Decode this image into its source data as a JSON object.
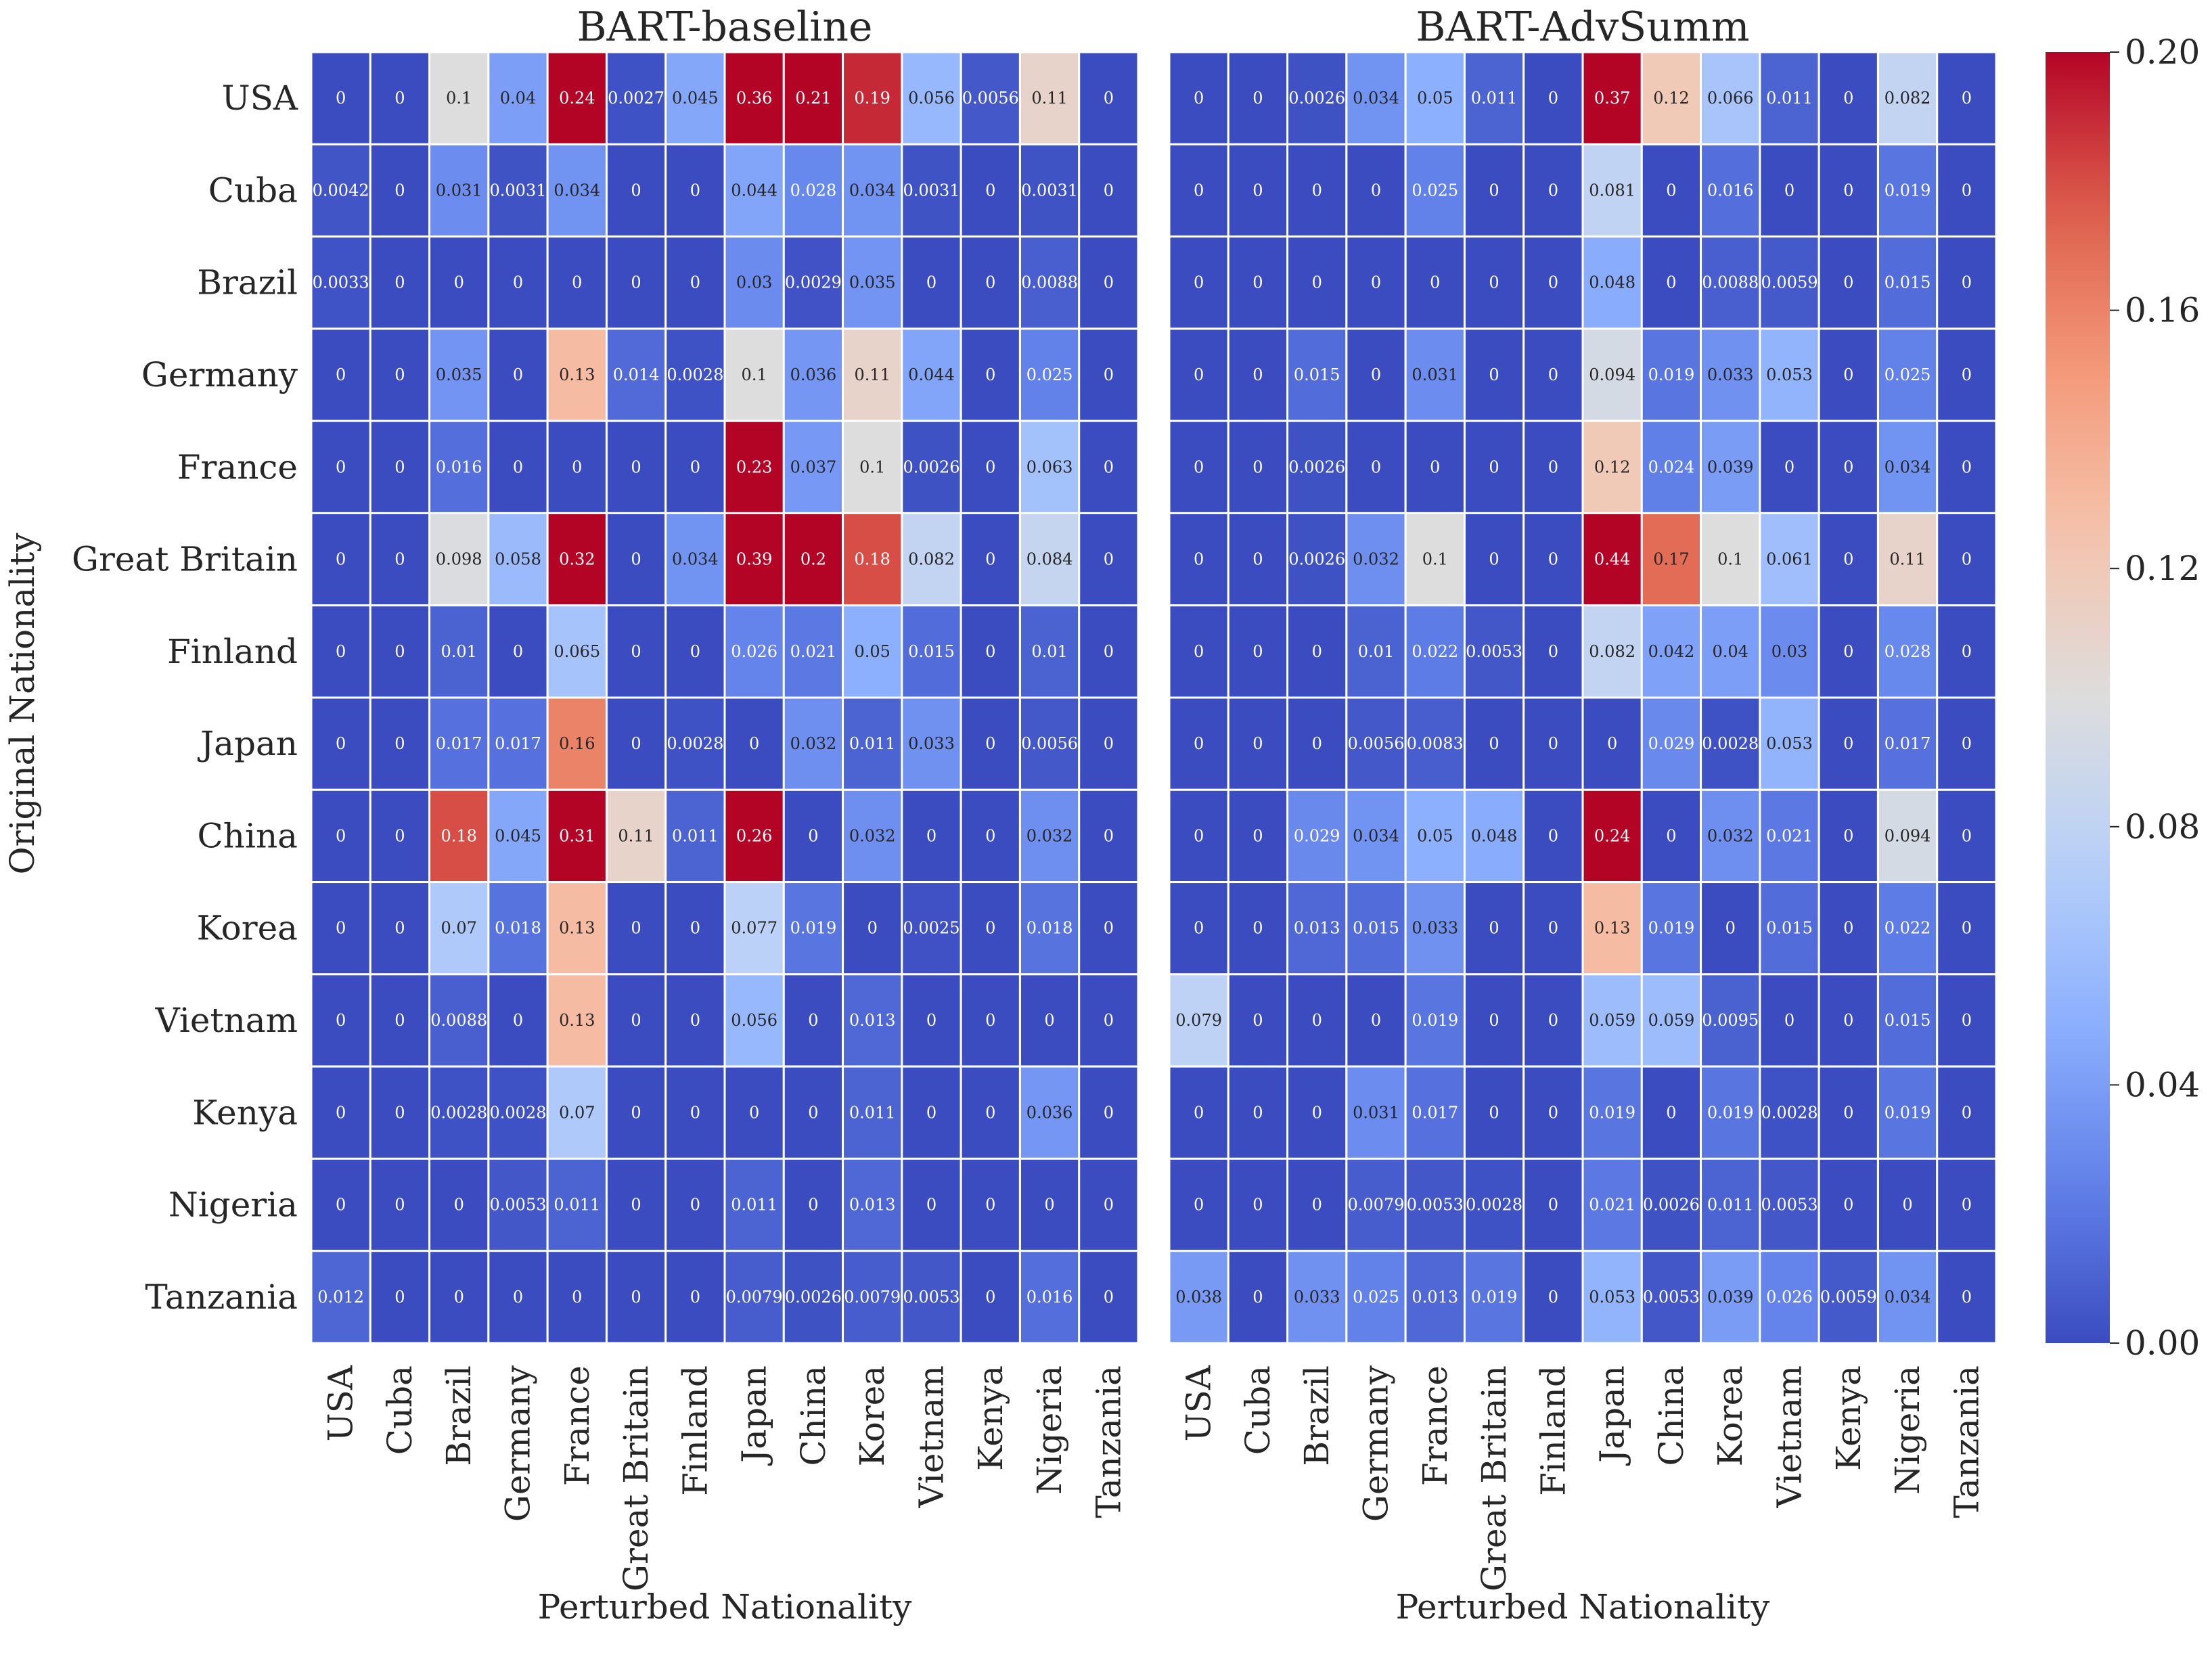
{
  "chart_data": {
    "type": "heatmap",
    "ylabel": "Original Nationality",
    "colormap": "coolwarm",
    "colorbar": {
      "vmin": 0.0,
      "vmax": 0.2,
      "ticks": [
        "0.00",
        "0.04",
        "0.08",
        "0.12",
        "0.16",
        "0.20"
      ]
    },
    "rows": [
      "USA",
      "Cuba",
      "Brazil",
      "Germany",
      "France",
      "Great Britain",
      "Finland",
      "Japan",
      "China",
      "Korea",
      "Vietnam",
      "Kenya",
      "Nigeria",
      "Tanzania"
    ],
    "columns": [
      "USA",
      "Cuba",
      "Brazil",
      "Germany",
      "France",
      "Great Britain",
      "Finland",
      "Japan",
      "China",
      "Korea",
      "Vietnam",
      "Kenya",
      "Nigeria",
      "Tanzania"
    ],
    "panels": [
      {
        "title": "BART-baseline",
        "xlabel": "Perturbed Nationality",
        "values": [
          [
            "0",
            "0",
            "0.1",
            "0.04",
            "0.24",
            "0.0027",
            "0.045",
            "0.36",
            "0.21",
            "0.19",
            "0.056",
            "0.0056",
            "0.11",
            "0"
          ],
          [
            "0.0042",
            "0",
            "0.031",
            "0.0031",
            "0.034",
            "0",
            "0",
            "0.044",
            "0.028",
            "0.034",
            "0.0031",
            "0",
            "0.0031",
            "0"
          ],
          [
            "0.0033",
            "0",
            "0",
            "0",
            "0",
            "0",
            "0",
            "0.03",
            "0.0029",
            "0.035",
            "0",
            "0",
            "0.0088",
            "0"
          ],
          [
            "0",
            "0",
            "0.035",
            "0",
            "0.13",
            "0.014",
            "0.0028",
            "0.1",
            "0.036",
            "0.11",
            "0.044",
            "0",
            "0.025",
            "0"
          ],
          [
            "0",
            "0",
            "0.016",
            "0",
            "0",
            "0",
            "0",
            "0.23",
            "0.037",
            "0.1",
            "0.0026",
            "0",
            "0.063",
            "0"
          ],
          [
            "0",
            "0",
            "0.098",
            "0.058",
            "0.32",
            "0",
            "0.034",
            "0.39",
            "0.2",
            "0.18",
            "0.082",
            "0",
            "0.084",
            "0"
          ],
          [
            "0",
            "0",
            "0.01",
            "0",
            "0.065",
            "0",
            "0",
            "0.026",
            "0.021",
            "0.05",
            "0.015",
            "0",
            "0.01",
            "0"
          ],
          [
            "0",
            "0",
            "0.017",
            "0.017",
            "0.16",
            "0",
            "0.0028",
            "0",
            "0.032",
            "0.011",
            "0.033",
            "0",
            "0.0056",
            "0"
          ],
          [
            "0",
            "0",
            "0.18",
            "0.045",
            "0.31",
            "0.11",
            "0.011",
            "0.26",
            "0",
            "0.032",
            "0",
            "0",
            "0.032",
            "0"
          ],
          [
            "0",
            "0",
            "0.07",
            "0.018",
            "0.13",
            "0",
            "0",
            "0.077",
            "0.019",
            "0",
            "0.0025",
            "0",
            "0.018",
            "0"
          ],
          [
            "0",
            "0",
            "0.0088",
            "0",
            "0.13",
            "0",
            "0",
            "0.056",
            "0",
            "0.013",
            "0",
            "0",
            "0",
            "0"
          ],
          [
            "0",
            "0",
            "0.0028",
            "0.0028",
            "0.07",
            "0",
            "0",
            "0",
            "0",
            "0.011",
            "0",
            "0",
            "0.036",
            "0"
          ],
          [
            "0",
            "0",
            "0",
            "0.0053",
            "0.011",
            "0",
            "0",
            "0.011",
            "0",
            "0.013",
            "0",
            "0",
            "0",
            "0"
          ],
          [
            "0.012",
            "0",
            "0",
            "0",
            "0",
            "0",
            "0",
            "0.0079",
            "0.0026",
            "0.0079",
            "0.0053",
            "0",
            "0.016",
            "0"
          ]
        ]
      },
      {
        "title": "BART-AdvSumm",
        "xlabel": "Perturbed Nationality",
        "values": [
          [
            "0",
            "0",
            "0.0026",
            "0.034",
            "0.05",
            "0.011",
            "0",
            "0.37",
            "0.12",
            "0.066",
            "0.011",
            "0",
            "0.082",
            "0"
          ],
          [
            "0",
            "0",
            "0",
            "0",
            "0.025",
            "0",
            "0",
            "0.081",
            "0",
            "0.016",
            "0",
            "0",
            "0.019",
            "0"
          ],
          [
            "0",
            "0",
            "0",
            "0",
            "0",
            "0",
            "0",
            "0.048",
            "0",
            "0.0088",
            "0.0059",
            "0",
            "0.015",
            "0"
          ],
          [
            "0",
            "0",
            "0.015",
            "0",
            "0.031",
            "0",
            "0",
            "0.094",
            "0.019",
            "0.033",
            "0.053",
            "0",
            "0.025",
            "0"
          ],
          [
            "0",
            "0",
            "0.0026",
            "0",
            "0",
            "0",
            "0",
            "0.12",
            "0.024",
            "0.039",
            "0",
            "0",
            "0.034",
            "0"
          ],
          [
            "0",
            "0",
            "0.0026",
            "0.032",
            "0.1",
            "0",
            "0",
            "0.44",
            "0.17",
            "0.1",
            "0.061",
            "0",
            "0.11",
            "0"
          ],
          [
            "0",
            "0",
            "0",
            "0.01",
            "0.022",
            "0.0053",
            "0",
            "0.082",
            "0.042",
            "0.04",
            "0.03",
            "0",
            "0.028",
            "0"
          ],
          [
            "0",
            "0",
            "0",
            "0.0056",
            "0.0083",
            "0",
            "0",
            "0",
            "0.029",
            "0.0028",
            "0.053",
            "0",
            "0.017",
            "0"
          ],
          [
            "0",
            "0",
            "0.029",
            "0.034",
            "0.05",
            "0.048",
            "0",
            "0.24",
            "0",
            "0.032",
            "0.021",
            "0",
            "0.094",
            "0"
          ],
          [
            "0",
            "0",
            "0.013",
            "0.015",
            "0.033",
            "0",
            "0",
            "0.13",
            "0.019",
            "0",
            "0.015",
            "0",
            "0.022",
            "0"
          ],
          [
            "0.079",
            "0",
            "0",
            "0",
            "0.019",
            "0",
            "0",
            "0.059",
            "0.059",
            "0.0095",
            "0",
            "0",
            "0.015",
            "0"
          ],
          [
            "0",
            "0",
            "0",
            "0.031",
            "0.017",
            "0",
            "0",
            "0.019",
            "0",
            "0.019",
            "0.0028",
            "0",
            "0.019",
            "0"
          ],
          [
            "0",
            "0",
            "0",
            "0.0079",
            "0.0053",
            "0.0028",
            "0",
            "0.021",
            "0.0026",
            "0.011",
            "0.0053",
            "0",
            "0",
            "0"
          ],
          [
            "0.038",
            "0",
            "0.033",
            "0.025",
            "0.013",
            "0.019",
            "0",
            "0.053",
            "0.0053",
            "0.039",
            "0.026",
            "0.0059",
            "0.034",
            "0"
          ]
        ]
      }
    ]
  }
}
